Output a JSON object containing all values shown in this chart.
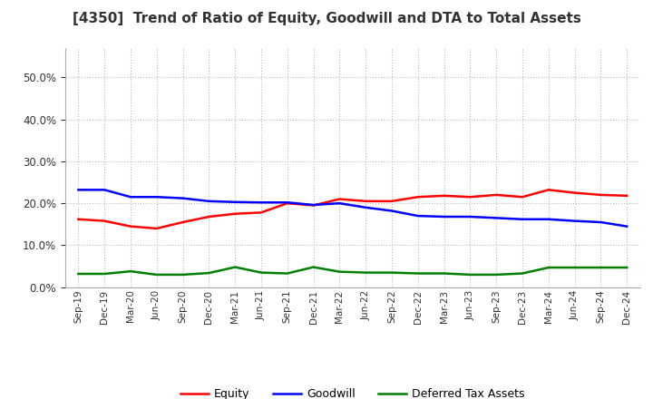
{
  "title": "[4350]  Trend of Ratio of Equity, Goodwill and DTA to Total Assets",
  "x_labels": [
    "Sep-19",
    "Dec-19",
    "Mar-20",
    "Jun-20",
    "Sep-20",
    "Dec-20",
    "Mar-21",
    "Jun-21",
    "Sep-21",
    "Dec-21",
    "Mar-22",
    "Jun-22",
    "Sep-22",
    "Dec-22",
    "Mar-23",
    "Jun-23",
    "Sep-23",
    "Dec-23",
    "Mar-24",
    "Jun-24",
    "Sep-24",
    "Dec-24"
  ],
  "equity": [
    0.162,
    0.158,
    0.145,
    0.14,
    0.155,
    0.168,
    0.175,
    0.178,
    0.2,
    0.195,
    0.21,
    0.205,
    0.205,
    0.215,
    0.218,
    0.215,
    0.22,
    0.215,
    0.232,
    0.225,
    0.22,
    0.218
  ],
  "goodwill": [
    0.232,
    0.232,
    0.215,
    0.215,
    0.212,
    0.205,
    0.203,
    0.202,
    0.202,
    0.196,
    0.2,
    0.19,
    0.182,
    0.17,
    0.168,
    0.168,
    0.165,
    0.162,
    0.162,
    0.158,
    0.155,
    0.145
  ],
  "dta": [
    0.032,
    0.032,
    0.038,
    0.03,
    0.03,
    0.034,
    0.048,
    0.035,
    0.033,
    0.048,
    0.037,
    0.035,
    0.035,
    0.033,
    0.033,
    0.03,
    0.03,
    0.033,
    0.047,
    0.047,
    0.047,
    0.047
  ],
  "equity_color": "#ff0000",
  "goodwill_color": "#0000ff",
  "dta_color": "#008000",
  "background_color": "#ffffff",
  "plot_bg_color": "#ffffff",
  "ylim": [
    0.0,
    0.57
  ],
  "yticks": [
    0.0,
    0.1,
    0.2,
    0.3,
    0.4,
    0.5
  ],
  "legend_labels": [
    "Equity",
    "Goodwill",
    "Deferred Tax Assets"
  ],
  "line_width": 1.8,
  "title_color": "#333333",
  "grid_color": "#bbbbbb"
}
